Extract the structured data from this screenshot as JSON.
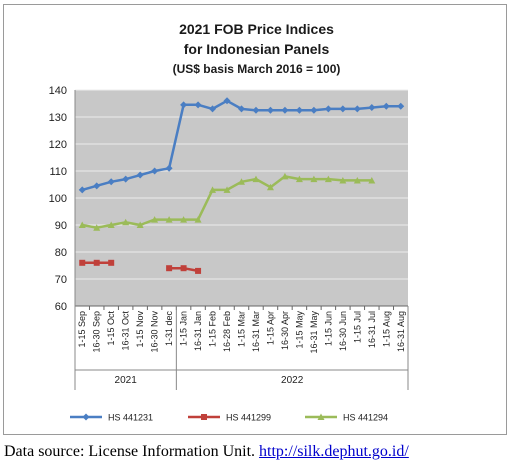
{
  "source": {
    "label": "Data source: License Information Unit.",
    "url_text": "http://silk.dephut.go.id/"
  },
  "colors": {
    "plot_bg": "#c8c8c8",
    "grid": "#ececec",
    "series": [
      "#4a7ec3",
      "#c0403a",
      "#9bbb59"
    ]
  },
  "chart_data": {
    "type": "line",
    "title": [
      "2021 FOB Price Indices",
      "for Indonesian Panels",
      "(US$ basis March 2016 = 100)"
    ],
    "xlabel": "",
    "ylabel": "",
    "ylim": [
      60,
      140
    ],
    "yticks": [
      60,
      70,
      80,
      90,
      100,
      110,
      120,
      130,
      140
    ],
    "grid": true,
    "legend_position": "bottom",
    "categories": [
      "1-15 Sep",
      "16-30 Sep",
      "1-15 Oct",
      "16-31 Oct",
      "1-15 Nov",
      "16-30 Nov",
      "1-31 dec",
      "1-15 Jan",
      "16-31 Jan",
      "1-15 Feb",
      "16-28 Feb",
      "1-15 Mar",
      "16-31 Mar",
      "1-15 Apr",
      "16-30 Apr",
      "1-15 May",
      "16-31 May",
      "1-15 Jun",
      "16-30 Jun",
      "1-15 Jul",
      "16-31 Jul",
      "1-15 Aug",
      "16-31 Aug"
    ],
    "year_groups": [
      {
        "label": "2021",
        "count": 7
      },
      {
        "label": "2022",
        "count": 16
      }
    ],
    "series": [
      {
        "name": "HS 441231",
        "marker": "diamond",
        "values": [
          103,
          104.5,
          106,
          107,
          108.5,
          110,
          111,
          134.5,
          134.5,
          133,
          136,
          133,
          132.5,
          132.5,
          132.5,
          132.5,
          132.5,
          133,
          133,
          133,
          133.5,
          134,
          134
        ]
      },
      {
        "name": "HS 441299",
        "marker": "square",
        "values": [
          76,
          76,
          76,
          null,
          null,
          null,
          74,
          74,
          73,
          null,
          null,
          null,
          null,
          null,
          null,
          null,
          null,
          null,
          null,
          null,
          null,
          null,
          null
        ]
      },
      {
        "name": "HS 441294",
        "marker": "triangle",
        "values": [
          90,
          89,
          90,
          91,
          90,
          92,
          92,
          92,
          92,
          103,
          103,
          106,
          107,
          104,
          108,
          107,
          107,
          107,
          106.5,
          106.5,
          106.5,
          null,
          null
        ]
      }
    ]
  }
}
